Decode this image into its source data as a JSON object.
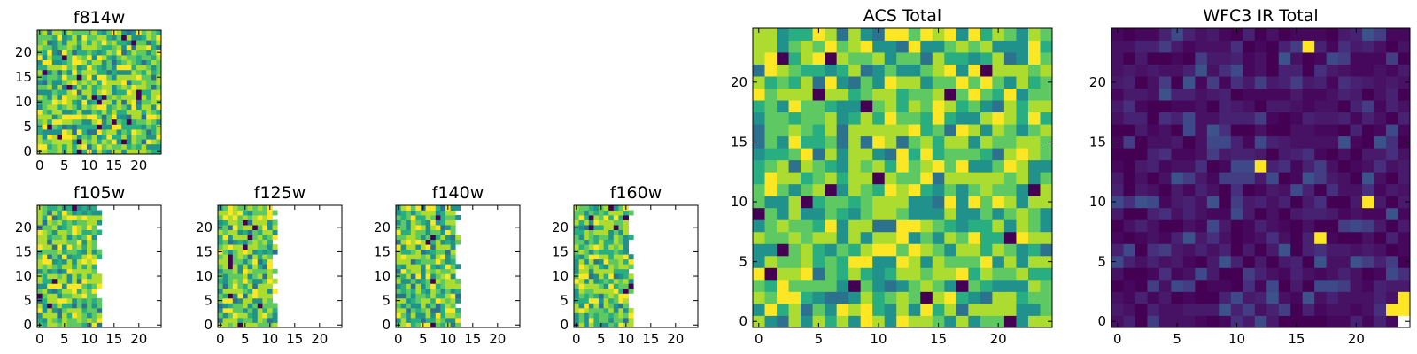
{
  "figure": {
    "panels": [
      {
        "id": "f814w",
        "title": "f814w",
        "kind": "acs-band",
        "xticks": [
          0,
          5,
          10,
          15,
          20
        ],
        "yticks": [
          0,
          5,
          10,
          15,
          20
        ]
      },
      {
        "id": "f105w",
        "title": "f105w",
        "kind": "ir-band",
        "xticks": [
          0,
          5,
          10,
          15,
          20
        ],
        "yticks": [
          0,
          5,
          10,
          15,
          20
        ]
      },
      {
        "id": "f125w",
        "title": "f125w",
        "kind": "ir-band",
        "xticks": [
          0,
          5,
          10,
          15,
          20
        ],
        "yticks": [
          0,
          5,
          10,
          15,
          20
        ]
      },
      {
        "id": "f140w",
        "title": "f140w",
        "kind": "ir-band",
        "xticks": [
          0,
          5,
          10,
          15,
          20
        ],
        "yticks": [
          0,
          5,
          10,
          15,
          20
        ]
      },
      {
        "id": "f160w",
        "title": "f160w",
        "kind": "ir-band",
        "xticks": [
          0,
          5,
          10,
          15,
          20
        ],
        "yticks": [
          0,
          5,
          10,
          15,
          20
        ]
      },
      {
        "id": "acs-total",
        "title": "ACS Total",
        "kind": "acs-total",
        "xticks": [
          0,
          5,
          10,
          15,
          20
        ],
        "yticks": [
          0,
          5,
          10,
          15,
          20
        ]
      },
      {
        "id": "wfc3-ir-total",
        "title": "WFC3 IR Total",
        "kind": "ir-total",
        "xticks": [
          0,
          5,
          10,
          15,
          20
        ],
        "yticks": [
          0,
          5,
          10,
          15,
          20
        ]
      }
    ]
  },
  "chart_data": [
    {
      "type": "heatmap",
      "title": "f814w",
      "grid_size": [
        25,
        25
      ],
      "xlim": [
        0,
        25
      ],
      "ylim": [
        0,
        25
      ],
      "colormap": "viridis",
      "filled_columns": 25
    },
    {
      "type": "heatmap",
      "title": "f105w",
      "grid_size": [
        25,
        25
      ],
      "xlim": [
        0,
        25
      ],
      "ylim": [
        0,
        25
      ],
      "colormap": "viridis",
      "filled_columns": 13
    },
    {
      "type": "heatmap",
      "title": "f125w",
      "grid_size": [
        25,
        25
      ],
      "xlim": [
        0,
        25
      ],
      "ylim": [
        0,
        25
      ],
      "colormap": "viridis",
      "filled_columns": 12
    },
    {
      "type": "heatmap",
      "title": "f140w",
      "grid_size": [
        25,
        25
      ],
      "xlim": [
        0,
        25
      ],
      "ylim": [
        0,
        25
      ],
      "colormap": "viridis",
      "filled_columns": 13
    },
    {
      "type": "heatmap",
      "title": "f160w",
      "grid_size": [
        25,
        25
      ],
      "xlim": [
        0,
        25
      ],
      "ylim": [
        0,
        25
      ],
      "colormap": "viridis",
      "filled_columns": 12
    },
    {
      "type": "heatmap",
      "title": "ACS Total",
      "grid_size": [
        25,
        25
      ],
      "xlim": [
        0,
        25
      ],
      "ylim": [
        0,
        25
      ],
      "colormap": "viridis",
      "filled_columns": 25
    },
    {
      "type": "heatmap",
      "title": "WFC3 IR Total",
      "grid_size": [
        25,
        25
      ],
      "xlim": [
        0,
        25
      ],
      "ylim": [
        0,
        25
      ],
      "colormap": "viridis",
      "filled_columns": 25,
      "bright_pixels": [
        [
          16,
          23
        ],
        [
          12,
          13
        ],
        [
          21,
          10
        ],
        [
          17,
          7
        ],
        [
          24,
          2
        ]
      ]
    }
  ]
}
